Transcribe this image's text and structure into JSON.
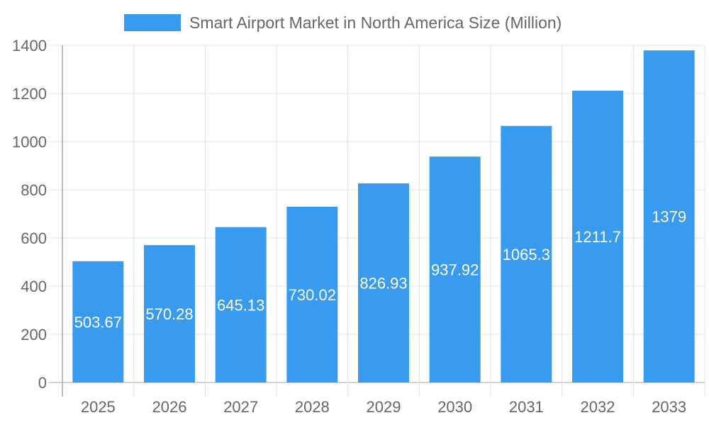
{
  "chart_data": {
    "type": "bar",
    "title": "",
    "legend": {
      "position": "top",
      "entries": [
        "Smart Airport Market in North America Size (Million)"
      ]
    },
    "categories": [
      "2025",
      "2026",
      "2027",
      "2028",
      "2029",
      "2030",
      "2031",
      "2032",
      "2033"
    ],
    "series": [
      {
        "name": "Smart Airport Market in North America Size (Million)",
        "values": [
          503.67,
          570.28,
          645.13,
          730.02,
          826.93,
          937.92,
          1065.3,
          1211.7,
          1379
        ]
      }
    ],
    "data_labels": [
      "503.67",
      "570.28",
      "645.13",
      "730.02",
      "826.93",
      "937.92",
      "1065.3",
      "1211.7",
      "1379"
    ],
    "ylim": [
      0,
      1400
    ],
    "yticks": [
      0,
      200,
      400,
      600,
      800,
      1000,
      1200,
      1400
    ],
    "grid": true,
    "colors": {
      "bar": "#389BEF",
      "grid": "#e0e0e0",
      "axis": "#aaaaaa",
      "text": "#666666",
      "label": "#ffffff"
    }
  }
}
